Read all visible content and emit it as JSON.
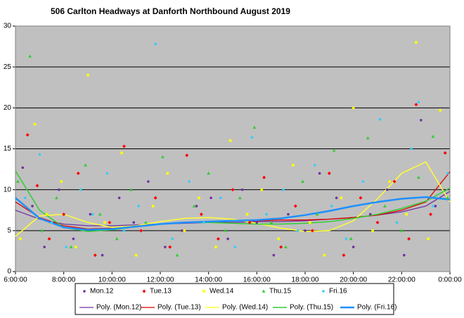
{
  "chart_data": {
    "type": "scatter",
    "title": "506 Carlton Headways at Danforth Northbound August 2019",
    "xlim": [
      6,
      24
    ],
    "ylim": [
      0,
      30
    ],
    "xticks": [
      {
        "value": 6,
        "label": "6:00:00"
      },
      {
        "value": 8,
        "label": "8:00:00"
      },
      {
        "value": 10,
        "label": "10:00:00"
      },
      {
        "value": 12,
        "label": "12:00:00"
      },
      {
        "value": 14,
        "label": "14:00:00"
      },
      {
        "value": 16,
        "label": "16:00:00"
      },
      {
        "value": 18,
        "label": "18:00:00"
      },
      {
        "value": 20,
        "label": "20:00:00"
      },
      {
        "value": 22,
        "label": "22:00:00"
      },
      {
        "value": 24,
        "label": "0:00:00"
      }
    ],
    "yticks": [
      0,
      5,
      10,
      15,
      20,
      25,
      30
    ],
    "grid": true,
    "background": "#c0c0c0",
    "series": [
      {
        "name": "Mon.12",
        "color": "#7030a0",
        "marker": "circle",
        "x": [
          6.3,
          6.7,
          7.2,
          7.8,
          8.4,
          9.1,
          9.6,
          10.3,
          10.9,
          11.5,
          12.2,
          12.9,
          13.5,
          14.1,
          14.8,
          15.4,
          16.0,
          16.7,
          17.3,
          18.0,
          18.6,
          19.3,
          20.0,
          20.7,
          21.4,
          22.1,
          22.8,
          23.4
        ],
        "values": [
          12.7,
          8,
          3,
          10,
          4,
          7,
          2,
          9,
          6,
          11,
          3,
          5,
          8,
          9,
          4,
          10,
          6,
          2,
          7,
          5,
          12,
          9,
          3,
          7,
          10,
          2,
          18.5,
          8
        ]
      },
      {
        "name": "Tue.13",
        "color": "#ff0000",
        "marker": "diamond",
        "x": [
          6.5,
          6.9,
          7.4,
          8.0,
          8.6,
          9.3,
          9.9,
          10.5,
          11.2,
          11.8,
          12.4,
          13.1,
          13.7,
          14.4,
          15.0,
          15.7,
          16.3,
          17.0,
          17.6,
          18.3,
          19.0,
          19.6,
          20.3,
          21.0,
          21.7,
          22.3,
          22.6,
          23.2,
          23.8
        ],
        "values": [
          16.7,
          10.5,
          4,
          7,
          12,
          2,
          6,
          15.3,
          5,
          9,
          3,
          14.2,
          7,
          4,
          10,
          6,
          11.5,
          3,
          8,
          5,
          12,
          2,
          9,
          6,
          11,
          4,
          20.4,
          7,
          14.5
        ]
      },
      {
        "name": "Wed.14",
        "color": "#ffff00",
        "marker": "square",
        "x": [
          6.2,
          6.8,
          7.3,
          7.9,
          8.5,
          9.0,
          9.7,
          10.4,
          11.0,
          11.7,
          12.3,
          13.0,
          13.6,
          14.3,
          14.9,
          15.6,
          16.2,
          16.9,
          17.5,
          18.2,
          18.8,
          19.5,
          20.0,
          20.8,
          21.5,
          22.2,
          22.6,
          23.1,
          23.6
        ],
        "values": [
          4,
          18,
          7,
          11,
          3,
          24,
          6,
          14.5,
          2,
          8,
          12,
          5,
          9,
          3,
          16,
          7,
          10,
          4,
          13,
          6,
          2,
          9,
          20,
          5,
          11,
          7,
          28,
          4,
          19.7
        ]
      },
      {
        "name": "Thu.15",
        "color": "#33cc33",
        "marker": "triangle",
        "x": [
          6.1,
          6.6,
          7.1,
          7.7,
          8.3,
          8.9,
          9.5,
          10.2,
          10.8,
          11.4,
          12.1,
          12.7,
          13.4,
          14.0,
          14.7,
          15.3,
          15.9,
          16.6,
          17.2,
          17.9,
          18.5,
          19.2,
          19.9,
          20.6,
          21.3,
          22.0,
          22.7,
          23.3,
          23.9
        ],
        "values": [
          11,
          26.3,
          5,
          9,
          3,
          13,
          7,
          4,
          10,
          6,
          14,
          2,
          8,
          12,
          5,
          9,
          17.6,
          6,
          3,
          11,
          7,
          14.8,
          4,
          16.3,
          8,
          5,
          11.5,
          16.5,
          9
        ]
      },
      {
        "name": "Fri.16",
        "color": "#33ccff",
        "marker": "circle",
        "x": [
          6.4,
          7.0,
          7.5,
          8.1,
          8.7,
          9.2,
          9.8,
          10.5,
          11.1,
          11.8,
          12.5,
          13.2,
          13.8,
          14.5,
          15.1,
          15.8,
          16.4,
          17.1,
          17.7,
          18.4,
          19.1,
          19.7,
          20.4,
          21.1,
          21.8,
          22.4,
          22.7,
          23.3,
          23.9
        ],
        "values": [
          9,
          14.3,
          6,
          3,
          10,
          7,
          12,
          5,
          8,
          27.8,
          4,
          11,
          6,
          9,
          3,
          16.4,
          7,
          10,
          5,
          13,
          8,
          4,
          11,
          18.6,
          6,
          15,
          20.7,
          8,
          12
        ]
      }
    ],
    "trend_x": [
      6,
      7,
      8,
      9,
      10,
      11,
      12,
      13,
      14,
      15,
      16,
      17,
      18,
      19,
      20,
      21,
      22,
      23,
      24
    ],
    "trendlines": [
      {
        "name": "Poly. (Mon.12)",
        "color": "#7030a0",
        "width": 1.3,
        "values": [
          7.5,
          6.4,
          5.8,
          5.6,
          5.6,
          5.7,
          5.8,
          5.9,
          6.0,
          6.0,
          6.1,
          6.1,
          6.2,
          6.4,
          6.6,
          6.9,
          7.3,
          8.0,
          9.8
        ]
      },
      {
        "name": "Poly. (Tue.13)",
        "color": "#e00000",
        "width": 1.3,
        "values": [
          8.5,
          6.6,
          5.6,
          5.2,
          5.3,
          5.5,
          5.8,
          6.0,
          6.1,
          6.2,
          6.2,
          6.3,
          6.3,
          6.4,
          6.6,
          6.9,
          7.5,
          8.5,
          12.2
        ]
      },
      {
        "name": "Poly. (Wed.14)",
        "color": "#ffff33",
        "width": 1.5,
        "values": [
          4.3,
          6.8,
          7.0,
          6.0,
          5.4,
          5.6,
          6.1,
          6.5,
          6.6,
          6.4,
          5.9,
          5.3,
          4.9,
          5.0,
          6.2,
          8.9,
          12.0,
          13.4,
          8.5
        ]
      },
      {
        "name": "Poly. (Thu.15)",
        "color": "#33cc33",
        "width": 1.5,
        "values": [
          12.3,
          7.5,
          5.4,
          4.9,
          5.1,
          5.5,
          5.8,
          6.0,
          6.0,
          5.9,
          5.8,
          5.8,
          5.9,
          6.1,
          6.5,
          7.0,
          7.7,
          8.6,
          10.2
        ]
      },
      {
        "name": "Poly. (Fri.16)",
        "color": "#1e90ff",
        "width": 2.5,
        "values": [
          9.0,
          6.5,
          5.4,
          5.1,
          5.2,
          5.5,
          5.8,
          6.0,
          6.1,
          6.2,
          6.3,
          6.5,
          6.9,
          7.4,
          8.0,
          8.5,
          8.9,
          9.1,
          8.8
        ]
      }
    ]
  }
}
